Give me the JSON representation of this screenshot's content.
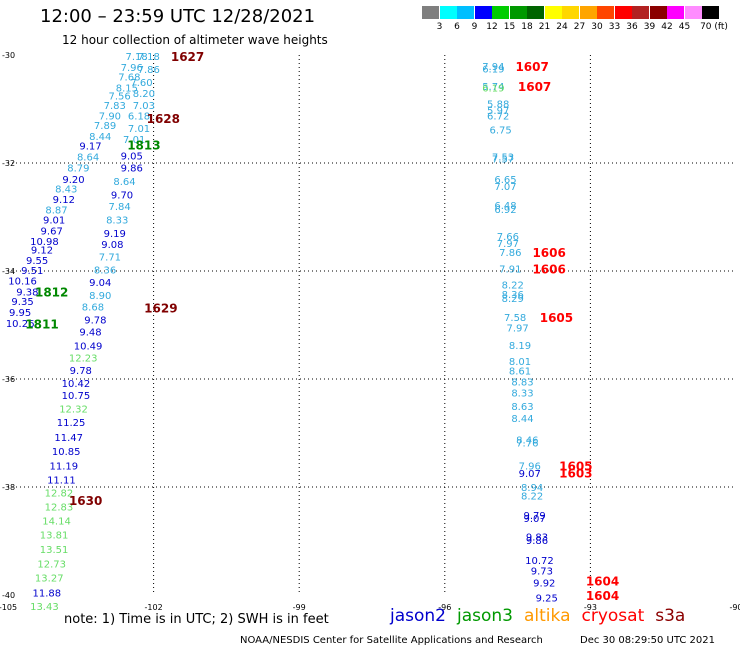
{
  "title": "12:00 – 23:59 UTC 12/28/2021",
  "subtitle": "12 hour collection of altimeter wave heights",
  "colorbar": {
    "labels": [
      "3",
      "6",
      "9",
      "12",
      "15",
      "18",
      "21",
      "24",
      "27",
      "30",
      "33",
      "36",
      "39",
      "42",
      "45",
      "70 (ft)"
    ],
    "colors": [
      "#7f7f7f",
      "#00ffff",
      "#00bfff",
      "#0000ff",
      "#00cd00",
      "#009900",
      "#006400",
      "#ffff00",
      "#ffd700",
      "#ffa500",
      "#ff4500",
      "#ff0000",
      "#b22222",
      "#8b0000",
      "#ff00ff",
      "#ff8cff",
      "#000000"
    ]
  },
  "axes": {
    "lat_labels": [
      "-30",
      "-32",
      "-34",
      "-36",
      "-38",
      "-40"
    ],
    "lon_labels": [
      "-105",
      "-102",
      "-99",
      "-96",
      "-93",
      "-90"
    ]
  },
  "note": "note:  1) Time is in UTC; 2) SWH is in feet",
  "legend": [
    {
      "name": "jason2",
      "color": "#0000cc"
    },
    {
      "name": "jason3",
      "color": "#009900"
    },
    {
      "name": "altika",
      "color": "#ff9900"
    },
    {
      "name": "cryosat",
      "color": "#ff0000"
    },
    {
      "name": "s3a",
      "color": "#8b0000"
    }
  ],
  "credit": "NOAA/NESDIS Center for Satellite Applications and Research",
  "timestamp": "Dec 30 08:29:50 UTC 2021",
  "track_labels": [
    {
      "text": "1627",
      "lat": -30.02,
      "lon": -101.3,
      "color": "#800000"
    },
    {
      "text": "1628",
      "lat": -31.17,
      "lon": -101.8,
      "color": "#800000"
    },
    {
      "text": "1813",
      "lat": -31.66,
      "lon": -102.2,
      "color": "#008800"
    },
    {
      "text": "1812",
      "lat": -34.38,
      "lon": -104.1,
      "color": "#008800"
    },
    {
      "text": "1811",
      "lat": -34.97,
      "lon": -104.3,
      "color": "#008800"
    },
    {
      "text": "1629",
      "lat": -34.68,
      "lon": -101.85,
      "color": "#800000"
    },
    {
      "text": "1630",
      "lat": -38.24,
      "lon": -103.4,
      "color": "#800000"
    },
    {
      "text": "1607",
      "lat": -30.2,
      "lon": -94.2,
      "color": "#ff0000"
    },
    {
      "text": "1607",
      "lat": -30.57,
      "lon": -94.15,
      "color": "#ff0000"
    },
    {
      "text": "1606",
      "lat": -33.65,
      "lon": -93.85,
      "color": "#ff0000"
    },
    {
      "text": "1606",
      "lat": -33.95,
      "lon": -93.85,
      "color": "#ff0000"
    },
    {
      "text": "1605",
      "lat": -34.85,
      "lon": -93.7,
      "color": "#ff0000"
    },
    {
      "text": "1605",
      "lat": -37.6,
      "lon": -93.3,
      "color": "#ff0000"
    },
    {
      "text": "1603",
      "lat": -37.73,
      "lon": -93.3,
      "color": "#ff0000"
    },
    {
      "text": "1604",
      "lat": -39.73,
      "lon": -92.75,
      "color": "#ff0000"
    },
    {
      "text": "1604",
      "lat": -40.0,
      "lon": -92.75,
      "color": "#ff0000"
    }
  ],
  "wave_heights": [
    {
      "v": "7.18",
      "lat": -30.02,
      "lon": -102.35,
      "color": "#33aadd"
    },
    {
      "v": "7.18",
      "lat": -30.02,
      "lon": -102.1,
      "color": "#33aadd"
    },
    {
      "v": "7.96",
      "lat": -30.22,
      "lon": -102.45,
      "color": "#33aadd"
    },
    {
      "v": "7.86",
      "lat": -30.26,
      "lon": -102.1,
      "color": "#33aadd"
    },
    {
      "v": "7.68",
      "lat": -30.4,
      "lon": -102.5,
      "color": "#33aadd"
    },
    {
      "v": "7.60",
      "lat": -30.5,
      "lon": -102.25,
      "color": "#33aadd"
    },
    {
      "v": "8.15",
      "lat": -30.6,
      "lon": -102.55,
      "color": "#33aadd"
    },
    {
      "v": "8.20",
      "lat": -30.7,
      "lon": -102.2,
      "color": "#33aadd"
    },
    {
      "v": "7.56",
      "lat": -30.75,
      "lon": -102.7,
      "color": "#33aadd"
    },
    {
      "v": "7.83",
      "lat": -30.93,
      "lon": -102.8,
      "color": "#33aadd"
    },
    {
      "v": "7.03",
      "lat": -30.93,
      "lon": -102.2,
      "color": "#33aadd"
    },
    {
      "v": "7.90",
      "lat": -31.12,
      "lon": -102.9,
      "color": "#33aadd"
    },
    {
      "v": "6.18",
      "lat": -31.12,
      "lon": -102.3,
      "color": "#33aadd"
    },
    {
      "v": "7.89",
      "lat": -31.3,
      "lon": -103.0,
      "color": "#33aadd"
    },
    {
      "v": "7.01",
      "lat": -31.35,
      "lon": -102.3,
      "color": "#33aadd"
    },
    {
      "v": "8.44",
      "lat": -31.5,
      "lon": -103.1,
      "color": "#33aadd"
    },
    {
      "v": "7.01",
      "lat": -31.56,
      "lon": -102.4,
      "color": "#33aadd"
    },
    {
      "v": "9.17",
      "lat": -31.68,
      "lon": -103.3,
      "color": "#0000cc"
    },
    {
      "v": "9.05",
      "lat": -31.86,
      "lon": -102.45,
      "color": "#0000cc"
    },
    {
      "v": "8.64",
      "lat": -31.88,
      "lon": -103.35,
      "color": "#33aadd"
    },
    {
      "v": "9.86",
      "lat": -32.08,
      "lon": -102.45,
      "color": "#0000cc"
    },
    {
      "v": "8.79",
      "lat": -32.08,
      "lon": -103.55,
      "color": "#33aadd"
    },
    {
      "v": "9.20",
      "lat": -32.3,
      "lon": -103.65,
      "color": "#0000cc"
    },
    {
      "v": "8.64",
      "lat": -32.33,
      "lon": -102.6,
      "color": "#33aadd"
    },
    {
      "v": "8.43",
      "lat": -32.47,
      "lon": -103.8,
      "color": "#33aadd"
    },
    {
      "v": "9.70",
      "lat": -32.58,
      "lon": -102.65,
      "color": "#0000cc"
    },
    {
      "v": "9.12",
      "lat": -32.67,
      "lon": -103.85,
      "color": "#0000cc"
    },
    {
      "v": "7.84",
      "lat": -32.8,
      "lon": -102.7,
      "color": "#33aadd"
    },
    {
      "v": "8.87",
      "lat": -32.86,
      "lon": -104.0,
      "color": "#33aadd"
    },
    {
      "v": "9.01",
      "lat": -33.05,
      "lon": -104.05,
      "color": "#0000cc"
    },
    {
      "v": "8.33",
      "lat": -33.05,
      "lon": -102.75,
      "color": "#33aadd"
    },
    {
      "v": "9.67",
      "lat": -33.25,
      "lon": -104.1,
      "color": "#0000cc"
    },
    {
      "v": "9.19",
      "lat": -33.3,
      "lon": -102.8,
      "color": "#0000cc"
    },
    {
      "v": "10.98",
      "lat": -33.44,
      "lon": -104.25,
      "color": "#0000cc"
    },
    {
      "v": "9.08",
      "lat": -33.5,
      "lon": -102.85,
      "color": "#0000cc"
    },
    {
      "v": "9.12",
      "lat": -33.6,
      "lon": -104.3,
      "color": "#0000cc"
    },
    {
      "v": "7.71",
      "lat": -33.73,
      "lon": -102.9,
      "color": "#33aadd"
    },
    {
      "v": "9.55",
      "lat": -33.8,
      "lon": -104.4,
      "color": "#0000cc"
    },
    {
      "v": "8.36",
      "lat": -33.97,
      "lon": -103.0,
      "color": "#33aadd"
    },
    {
      "v": "9.51",
      "lat": -33.98,
      "lon": -104.5,
      "color": "#0000cc"
    },
    {
      "v": "10.16",
      "lat": -34.18,
      "lon": -104.7,
      "color": "#0000cc"
    },
    {
      "v": "9.04",
      "lat": -34.2,
      "lon": -103.1,
      "color": "#0000cc"
    },
    {
      "v": "9.38",
      "lat": -34.38,
      "lon": -104.6,
      "color": "#0000cc"
    },
    {
      "v": "8.90",
      "lat": -34.44,
      "lon": -103.1,
      "color": "#33aadd"
    },
    {
      "v": "9.35",
      "lat": -34.56,
      "lon": -104.7,
      "color": "#0000cc"
    },
    {
      "v": "8.68",
      "lat": -34.66,
      "lon": -103.25,
      "color": "#33aadd"
    },
    {
      "v": "9.95",
      "lat": -34.76,
      "lon": -104.75,
      "color": "#0000cc"
    },
    {
      "v": "9.78",
      "lat": -34.9,
      "lon": -103.2,
      "color": "#0000cc"
    },
    {
      "v": "10.26",
      "lat": -34.96,
      "lon": -104.75,
      "color": "#0000cc"
    },
    {
      "v": "9.48",
      "lat": -35.12,
      "lon": -103.3,
      "color": "#0000cc"
    },
    {
      "v": "10.49",
      "lat": -35.38,
      "lon": -103.35,
      "color": "#0000cc"
    },
    {
      "v": "12.23",
      "lat": -35.6,
      "lon": -103.45,
      "color": "#66dd66"
    },
    {
      "v": "9.78",
      "lat": -35.83,
      "lon": -103.5,
      "color": "#0000cc"
    },
    {
      "v": "10.42",
      "lat": -36.07,
      "lon": -103.6,
      "color": "#0000cc"
    },
    {
      "v": "10.75",
      "lat": -36.3,
      "lon": -103.6,
      "color": "#0000cc"
    },
    {
      "v": "12.32",
      "lat": -36.55,
      "lon": -103.65,
      "color": "#66dd66"
    },
    {
      "v": "11.25",
      "lat": -36.8,
      "lon": -103.7,
      "color": "#0000cc"
    },
    {
      "v": "11.47",
      "lat": -37.07,
      "lon": -103.75,
      "color": "#0000cc"
    },
    {
      "v": "10.85",
      "lat": -37.33,
      "lon": -103.8,
      "color": "#0000cc"
    },
    {
      "v": "11.19",
      "lat": -37.6,
      "lon": -103.85,
      "color": "#0000cc"
    },
    {
      "v": "11.11",
      "lat": -37.86,
      "lon": -103.9,
      "color": "#0000cc"
    },
    {
      "v": "12.82",
      "lat": -38.1,
      "lon": -103.95,
      "color": "#66dd66"
    },
    {
      "v": "12.83",
      "lat": -38.36,
      "lon": -103.95,
      "color": "#66dd66"
    },
    {
      "v": "14.14",
      "lat": -38.62,
      "lon": -104.0,
      "color": "#66dd66"
    },
    {
      "v": "13.81",
      "lat": -38.88,
      "lon": -104.05,
      "color": "#66dd66"
    },
    {
      "v": "13.51",
      "lat": -39.15,
      "lon": -104.05,
      "color": "#66dd66"
    },
    {
      "v": "12.73",
      "lat": -39.42,
      "lon": -104.1,
      "color": "#66dd66"
    },
    {
      "v": "13.27",
      "lat": -39.68,
      "lon": -104.15,
      "color": "#66dd66"
    },
    {
      "v": "11.88",
      "lat": -39.95,
      "lon": -104.2,
      "color": "#0000cc"
    },
    {
      "v": "13.43",
      "lat": -40.2,
      "lon": -104.25,
      "color": "#66dd66"
    },
    {
      "v": "7.94",
      "lat": -30.2,
      "lon": -95.0,
      "color": "#33aadd"
    },
    {
      "v": "6.19",
      "lat": -30.25,
      "lon": -95.0,
      "color": "#33aadd"
    },
    {
      "v": "5.74",
      "lat": -30.57,
      "lon": -95.0,
      "color": "#33aadd"
    },
    {
      "v": "6.19",
      "lat": -30.6,
      "lon": -95.0,
      "color": "#66dd66"
    },
    {
      "v": "5.88",
      "lat": -30.9,
      "lon": -94.9,
      "color": "#33aadd"
    },
    {
      "v": "5.97",
      "lat": -31.02,
      "lon": -94.9,
      "color": "#33aadd"
    },
    {
      "v": "6.72",
      "lat": -31.12,
      "lon": -94.9,
      "color": "#33aadd"
    },
    {
      "v": "6.75",
      "lat": -31.38,
      "lon": -94.85,
      "color": "#33aadd"
    },
    {
      "v": "7.53",
      "lat": -31.88,
      "lon": -94.8,
      "color": "#33aadd"
    },
    {
      "v": "7.57",
      "lat": -31.92,
      "lon": -94.8,
      "color": "#33aadd"
    },
    {
      "v": "6.65",
      "lat": -32.3,
      "lon": -94.75,
      "color": "#33aadd"
    },
    {
      "v": "7.07",
      "lat": -32.43,
      "lon": -94.75,
      "color": "#33aadd"
    },
    {
      "v": "6.48",
      "lat": -32.78,
      "lon": -94.75,
      "color": "#33aadd"
    },
    {
      "v": "6.92",
      "lat": -32.85,
      "lon": -94.75,
      "color": "#33aadd"
    },
    {
      "v": "7.66",
      "lat": -33.35,
      "lon": -94.7,
      "color": "#33aadd"
    },
    {
      "v": "7.97",
      "lat": -33.48,
      "lon": -94.7,
      "color": "#33aadd"
    },
    {
      "v": "7.86",
      "lat": -33.65,
      "lon": -94.65,
      "color": "#33aadd"
    },
    {
      "v": "7.91",
      "lat": -33.95,
      "lon": -94.65,
      "color": "#33aadd"
    },
    {
      "v": "8.22",
      "lat": -34.25,
      "lon": -94.6,
      "color": "#33aadd"
    },
    {
      "v": "8.36",
      "lat": -34.43,
      "lon": -94.6,
      "color": "#33aadd"
    },
    {
      "v": "8.29",
      "lat": -34.5,
      "lon": -94.6,
      "color": "#33aadd"
    },
    {
      "v": "7.58",
      "lat": -34.85,
      "lon": -94.55,
      "color": "#33aadd"
    },
    {
      "v": "7.97",
      "lat": -35.05,
      "lon": -94.5,
      "color": "#33aadd"
    },
    {
      "v": "8.19",
      "lat": -35.37,
      "lon": -94.45,
      "color": "#33aadd"
    },
    {
      "v": "8.01",
      "lat": -35.67,
      "lon": -94.45,
      "color": "#33aadd"
    },
    {
      "v": "8.61",
      "lat": -35.84,
      "lon": -94.45,
      "color": "#33aadd"
    },
    {
      "v": "8.83",
      "lat": -36.05,
      "lon": -94.4,
      "color": "#33aadd"
    },
    {
      "v": "8.33",
      "lat": -36.25,
      "lon": -94.4,
      "color": "#33aadd"
    },
    {
      "v": "8.63",
      "lat": -36.5,
      "lon": -94.4,
      "color": "#33aadd"
    },
    {
      "v": "8.44",
      "lat": -36.72,
      "lon": -94.4,
      "color": "#33aadd"
    },
    {
      "v": "8.46",
      "lat": -37.12,
      "lon": -94.3,
      "color": "#33aadd"
    },
    {
      "v": "7.76",
      "lat": -37.18,
      "lon": -94.3,
      "color": "#33aadd"
    },
    {
      "v": "7.96",
      "lat": -37.6,
      "lon": -94.25,
      "color": "#33aadd"
    },
    {
      "v": "9.07",
      "lat": -37.74,
      "lon": -94.25,
      "color": "#0000cc"
    },
    {
      "v": "8.94",
      "lat": -38.0,
      "lon": -94.2,
      "color": "#33aadd"
    },
    {
      "v": "8.22",
      "lat": -38.16,
      "lon": -94.2,
      "color": "#33aadd"
    },
    {
      "v": "9.79",
      "lat": -38.52,
      "lon": -94.15,
      "color": "#0000cc"
    },
    {
      "v": "9.07",
      "lat": -38.57,
      "lon": -94.15,
      "color": "#0000cc"
    },
    {
      "v": "9.83",
      "lat": -38.92,
      "lon": -94.1,
      "color": "#0000cc"
    },
    {
      "v": "9.86",
      "lat": -38.98,
      "lon": -94.1,
      "color": "#0000cc"
    },
    {
      "v": "10.72",
      "lat": -39.35,
      "lon": -94.05,
      "color": "#0000cc"
    },
    {
      "v": "9.73",
      "lat": -39.55,
      "lon": -94.0,
      "color": "#0000cc"
    },
    {
      "v": "9.92",
      "lat": -39.77,
      "lon": -93.95,
      "color": "#0000cc"
    },
    {
      "v": "9.25",
      "lat": -40.05,
      "lon": -93.9,
      "color": "#0000cc"
    }
  ]
}
